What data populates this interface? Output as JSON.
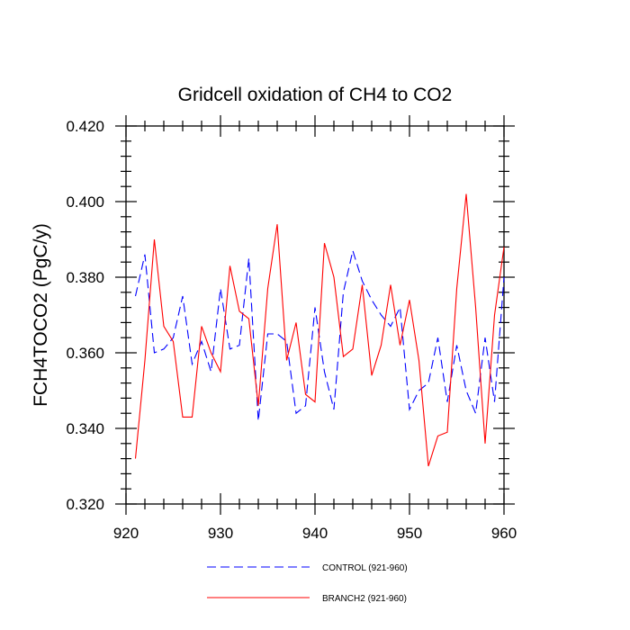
{
  "chart_data": {
    "type": "line",
    "title": "Gridcell oxidation of CH4 to CO2",
    "xlabel": "",
    "ylabel": "FCH4TOCO2  (PgC/y)",
    "xlim": [
      920,
      960
    ],
    "ylim": [
      0.32,
      0.42
    ],
    "x_ticks": [
      920,
      930,
      940,
      950,
      960
    ],
    "x_tick_labels": [
      "920",
      "930",
      "940",
      "950",
      "960"
    ],
    "y_ticks": [
      0.32,
      0.34,
      0.36,
      0.38,
      0.4,
      0.42
    ],
    "y_tick_labels": [
      "0.320",
      "0.340",
      "0.360",
      "0.380",
      "0.400",
      "0.420"
    ],
    "grid": false,
    "legend_position": "bottom",
    "x": [
      921,
      922,
      923,
      924,
      925,
      926,
      927,
      928,
      929,
      930,
      931,
      932,
      933,
      934,
      935,
      936,
      937,
      938,
      939,
      940,
      941,
      942,
      943,
      944,
      945,
      946,
      947,
      948,
      949,
      950,
      951,
      952,
      953,
      954,
      955,
      956,
      957,
      958,
      959,
      960
    ],
    "series": [
      {
        "name": "CONTROL (921-960)",
        "color": "#0000ff",
        "dash": "dashed",
        "values": [
          0.375,
          0.386,
          0.36,
          0.361,
          0.364,
          0.375,
          0.357,
          0.363,
          0.355,
          0.377,
          0.361,
          0.362,
          0.385,
          0.342,
          0.365,
          0.365,
          0.363,
          0.344,
          0.346,
          0.372,
          0.355,
          0.345,
          0.376,
          0.387,
          0.379,
          0.374,
          0.37,
          0.367,
          0.372,
          0.345,
          0.35,
          0.352,
          0.364,
          0.347,
          0.362,
          0.35,
          0.344,
          0.364,
          0.347,
          0.38
        ]
      },
      {
        "name": "BRANCH2 (921-960)",
        "color": "#ff0000",
        "dash": "solid",
        "values": [
          0.332,
          0.358,
          0.39,
          0.367,
          0.363,
          0.343,
          0.343,
          0.367,
          0.36,
          0.355,
          0.383,
          0.371,
          0.369,
          0.346,
          0.377,
          0.394,
          0.358,
          0.368,
          0.349,
          0.347,
          0.389,
          0.38,
          0.359,
          0.361,
          0.378,
          0.354,
          0.362,
          0.378,
          0.362,
          0.374,
          0.358,
          0.33,
          0.338,
          0.339,
          0.377,
          0.402,
          0.372,
          0.336,
          0.37,
          0.388
        ]
      }
    ]
  }
}
